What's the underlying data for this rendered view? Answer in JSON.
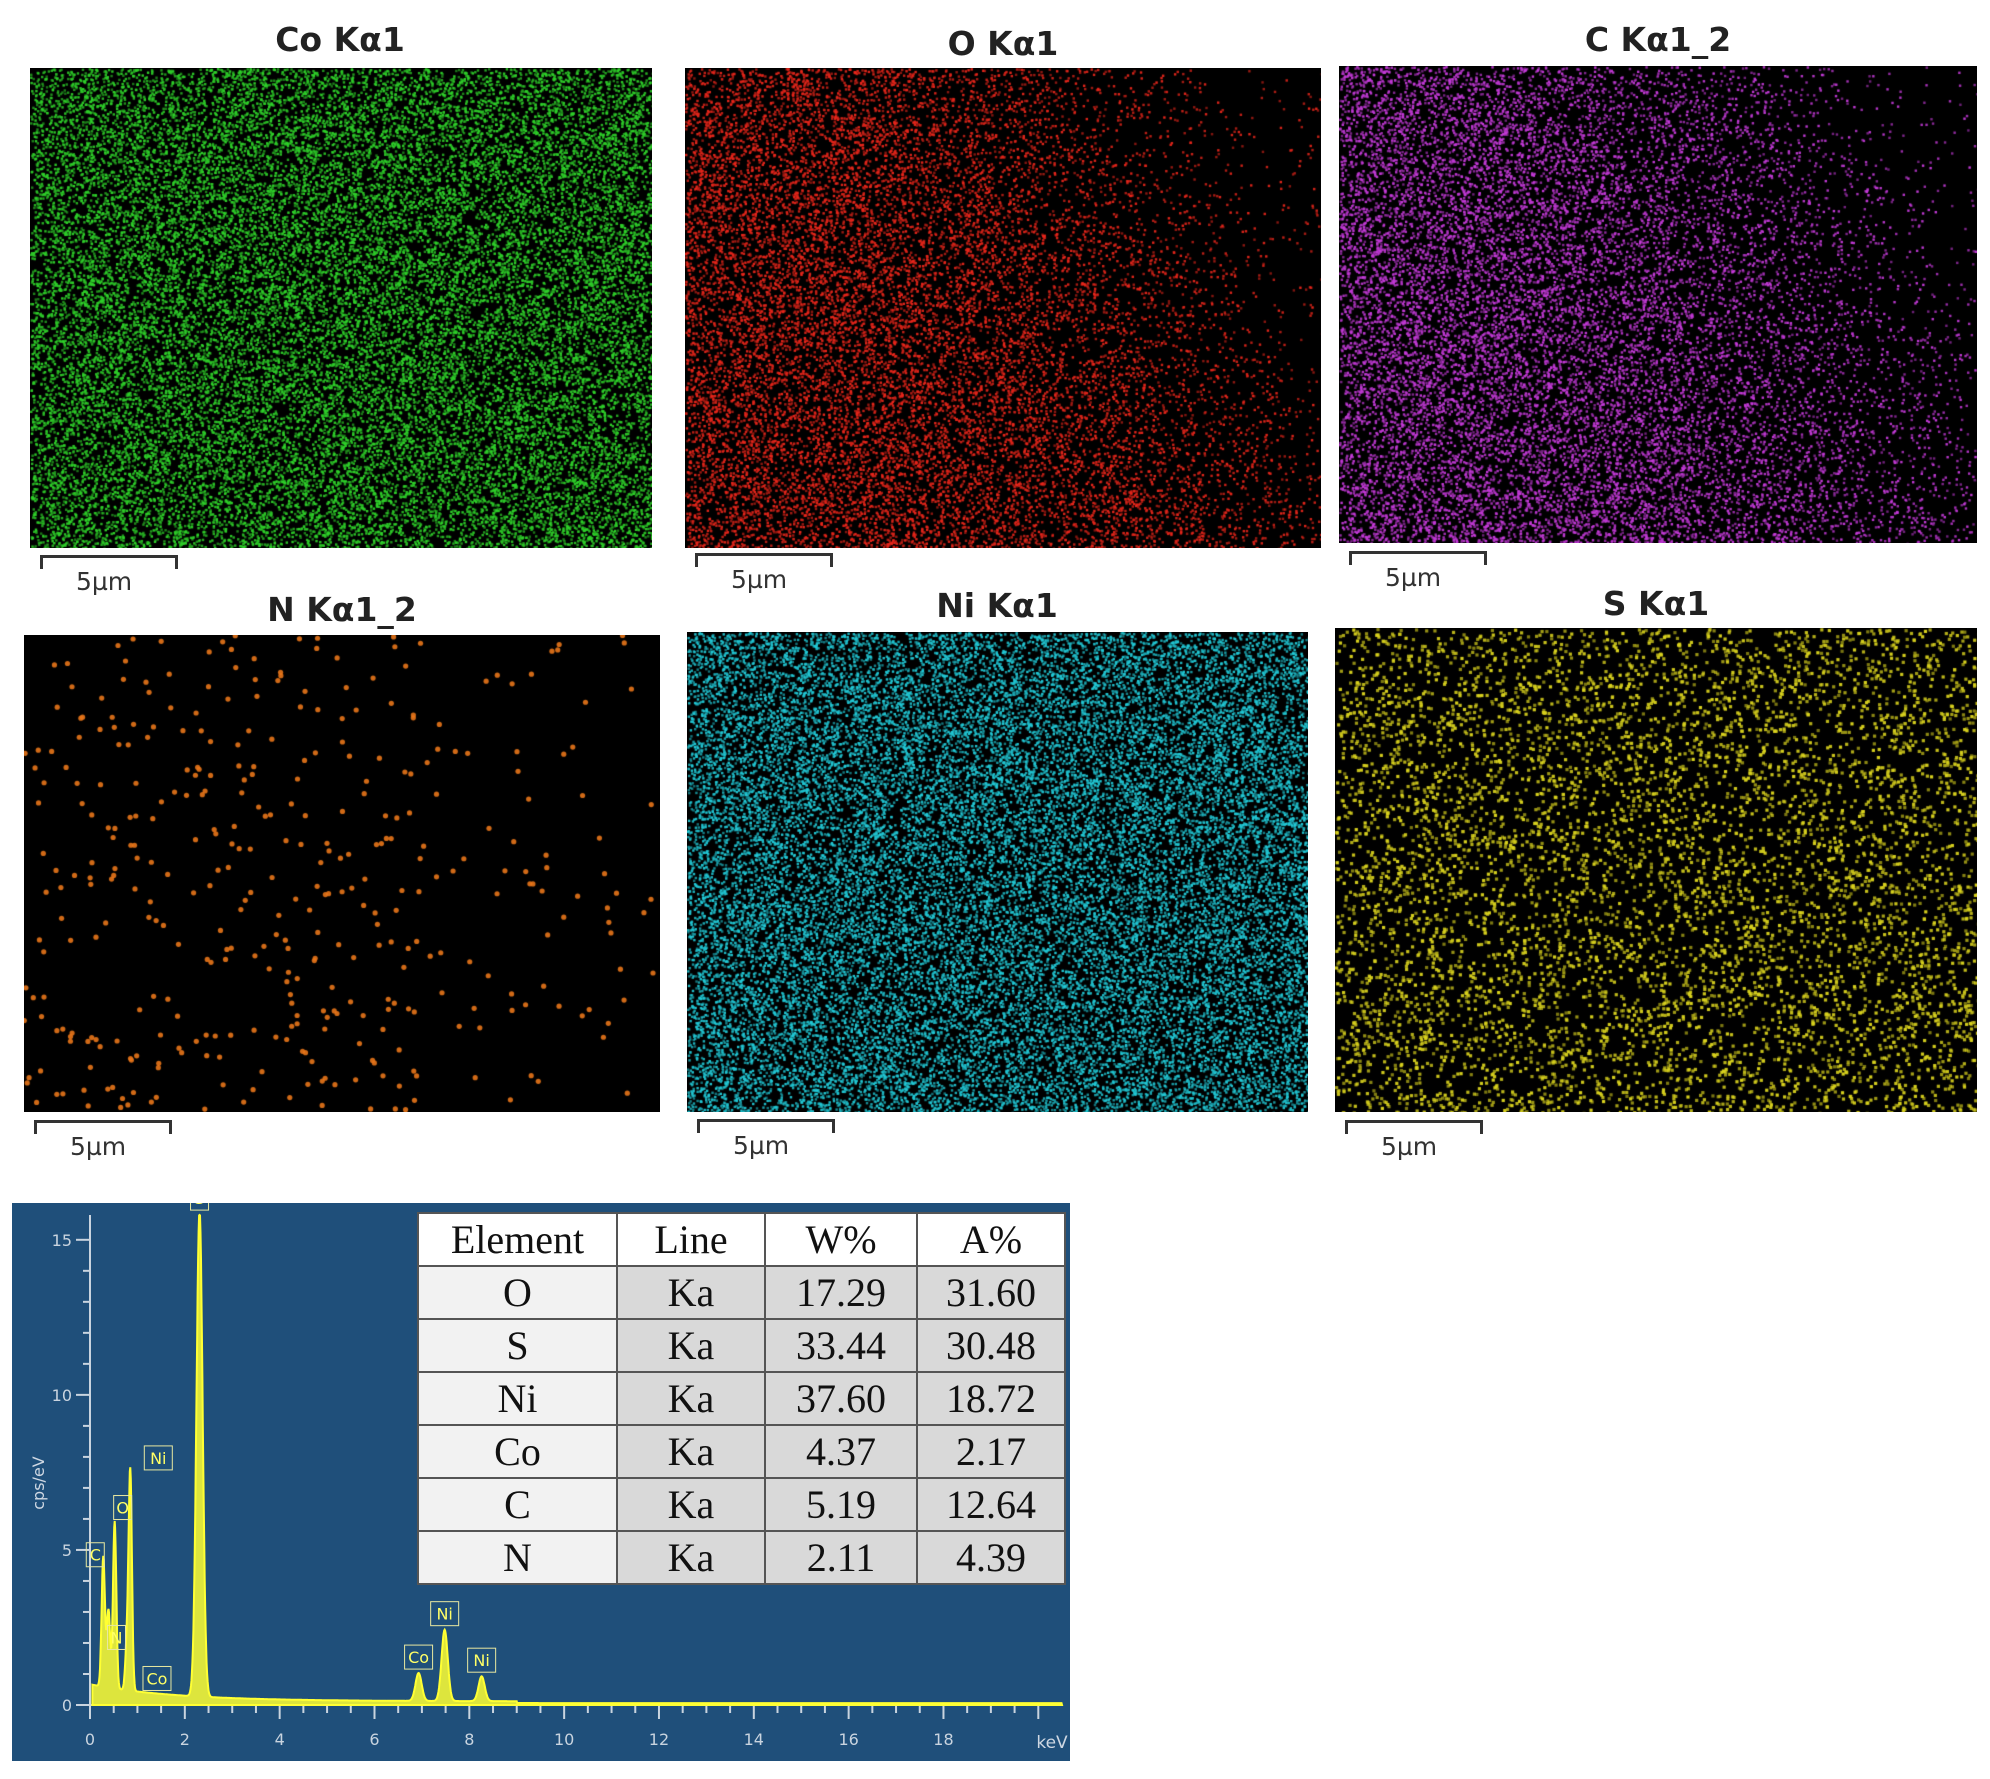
{
  "maps": [
    {
      "title": "Co Kα1",
      "color": "#2fd12a",
      "density": "high",
      "scale": "5µm"
    },
    {
      "title": "O Kα1",
      "color": "#e8261b",
      "density": "gradient-left",
      "scale": "5µm"
    },
    {
      "title": "C Kα1_2",
      "color": "#c43ad8",
      "density": "gradient-left",
      "scale": "5µm"
    },
    {
      "title": "N Kα1_2",
      "color": "#e8751a",
      "density": "sparse",
      "scale": "5µm"
    },
    {
      "title": "Ni Kα1",
      "color": "#22c9d6",
      "density": "high",
      "scale": "5µm"
    },
    {
      "title": "S Kα1",
      "color": "#d9d21e",
      "density": "medium",
      "scale": "5µm"
    }
  ],
  "spectrum": {
    "background": "#1f4f7a",
    "trace_color": "#ffff33",
    "ylabel": "cps/eV",
    "xlabel": "keV",
    "x_ticks": [
      "0",
      "2",
      "4",
      "6",
      "8",
      "10",
      "12",
      "14",
      "16",
      "18"
    ],
    "y_ticks": [
      "0",
      "5",
      "10",
      "15"
    ],
    "xlim": [
      0,
      20.5
    ],
    "ylim": [
      0,
      15.8
    ],
    "peaks": [
      {
        "label": "C",
        "energy": 0.28,
        "height": 4.2
      },
      {
        "label": "N",
        "energy": 0.39,
        "height": 2.5
      },
      {
        "label": "O",
        "energy": 0.52,
        "height": 5.4
      },
      {
        "label": "Ni",
        "energy": 0.85,
        "height": 7.0
      },
      {
        "label": "Co",
        "energy": 0.78,
        "height": 1.5
      },
      {
        "label": "S",
        "energy": 2.31,
        "height": 15.7
      },
      {
        "label": "Co",
        "energy": 6.93,
        "height": 0.9
      },
      {
        "label": "Ni",
        "energy": 7.48,
        "height": 2.3
      },
      {
        "label": "Ni",
        "energy": 8.26,
        "height": 0.8
      }
    ]
  },
  "table": {
    "headers": [
      "Element",
      "Line",
      "W%",
      "A%"
    ],
    "rows": [
      [
        "O",
        "Ka",
        "17.29",
        "31.60"
      ],
      [
        "S",
        "Ka",
        "33.44",
        "30.48"
      ],
      [
        "Ni",
        "Ka",
        "37.60",
        "18.72"
      ],
      [
        "Co",
        "Ka",
        "4.37",
        "2.17"
      ],
      [
        "C",
        "Ka",
        "5.19",
        "12.64"
      ],
      [
        "N",
        "Ka",
        "2.11",
        "4.39"
      ]
    ]
  }
}
